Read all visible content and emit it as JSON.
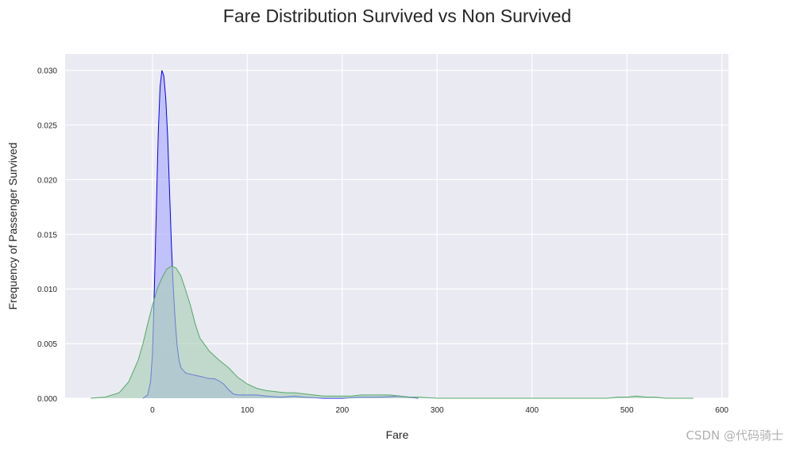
{
  "chart_data": {
    "type": "area",
    "title": "Fare Distribution Survived vs Non Survived",
    "xlabel": "Fare",
    "ylabel": "Frequency of Passenger Survived",
    "xlim": [
      -92,
      607
    ],
    "ylim": [
      0,
      0.0315
    ],
    "grid": true,
    "x_ticks": [
      0,
      100,
      200,
      300,
      400,
      500,
      600
    ],
    "y_ticks": [
      0.0,
      0.005,
      0.01,
      0.015,
      0.02,
      0.025,
      0.03
    ],
    "x_tick_labels": [
      "0",
      "100",
      "200",
      "300",
      "400",
      "500",
      "600"
    ],
    "y_tick_labels": [
      "0.000",
      "0.005",
      "0.010",
      "0.015",
      "0.020",
      "0.025",
      "0.030"
    ],
    "series": [
      {
        "color": "#0000ff",
        "fill": "#aaaaff",
        "points": [
          [
            -10,
            0
          ],
          [
            -5,
            0.0003
          ],
          [
            -2,
            0.0015
          ],
          [
            0,
            0.004
          ],
          [
            2,
            0.01
          ],
          [
            4,
            0.017
          ],
          [
            6,
            0.024
          ],
          [
            8,
            0.0285
          ],
          [
            10,
            0.03
          ],
          [
            12,
            0.0295
          ],
          [
            14,
            0.0275
          ],
          [
            16,
            0.024
          ],
          [
            18,
            0.019
          ],
          [
            20,
            0.014
          ],
          [
            22,
            0.01
          ],
          [
            24,
            0.007
          ],
          [
            26,
            0.0048
          ],
          [
            28,
            0.0035
          ],
          [
            30,
            0.0028
          ],
          [
            35,
            0.0023
          ],
          [
            40,
            0.0022
          ],
          [
            45,
            0.0021
          ],
          [
            50,
            0.002
          ],
          [
            55,
            0.0019
          ],
          [
            60,
            0.0018
          ],
          [
            65,
            0.0018
          ],
          [
            70,
            0.0016
          ],
          [
            75,
            0.0013
          ],
          [
            80,
            0.0008
          ],
          [
            85,
            0.0004
          ],
          [
            90,
            0.0003
          ],
          [
            100,
            0.0003
          ],
          [
            110,
            0.0003
          ],
          [
            120,
            0.0002
          ],
          [
            135,
            0.0001
          ],
          [
            150,
            0.0002
          ],
          [
            160,
            0.0001
          ],
          [
            180,
            0.0
          ],
          [
            200,
            0.0
          ],
          [
            220,
            0.0001
          ],
          [
            240,
            0.0001
          ],
          [
            260,
            0.0002
          ],
          [
            270,
            0.0001
          ],
          [
            280,
            0.0
          ]
        ]
      },
      {
        "color": "#55a868",
        "fill": "#a8cdb4",
        "points": [
          [
            -65,
            0
          ],
          [
            -50,
            0.0001
          ],
          [
            -35,
            0.0005
          ],
          [
            -25,
            0.0015
          ],
          [
            -15,
            0.0035
          ],
          [
            -10,
            0.005
          ],
          [
            -5,
            0.0068
          ],
          [
            0,
            0.0085
          ],
          [
            5,
            0.01
          ],
          [
            10,
            0.011
          ],
          [
            15,
            0.0118
          ],
          [
            20,
            0.0121
          ],
          [
            25,
            0.0119
          ],
          [
            30,
            0.0112
          ],
          [
            35,
            0.0099
          ],
          [
            40,
            0.0085
          ],
          [
            45,
            0.0068
          ],
          [
            50,
            0.0055
          ],
          [
            60,
            0.0043
          ],
          [
            70,
            0.0035
          ],
          [
            80,
            0.0028
          ],
          [
            90,
            0.0019
          ],
          [
            100,
            0.0013
          ],
          [
            110,
            0.0009
          ],
          [
            120,
            0.0007
          ],
          [
            130,
            0.0006
          ],
          [
            140,
            0.0005
          ],
          [
            150,
            0.0005
          ],
          [
            160,
            0.0004
          ],
          [
            170,
            0.0003
          ],
          [
            180,
            0.0002
          ],
          [
            190,
            0.0002
          ],
          [
            200,
            0.0002
          ],
          [
            210,
            0.0002
          ],
          [
            220,
            0.0003
          ],
          [
            230,
            0.0003
          ],
          [
            240,
            0.0003
          ],
          [
            250,
            0.0003
          ],
          [
            260,
            0.0002
          ],
          [
            270,
            0.0001
          ],
          [
            280,
            0.0001
          ],
          [
            300,
            0.0
          ],
          [
            330,
            0.0
          ],
          [
            400,
            0.0
          ],
          [
            460,
            0.0
          ],
          [
            480,
            0.0
          ],
          [
            490,
            0.0001
          ],
          [
            500,
            0.0001
          ],
          [
            510,
            0.0002
          ],
          [
            520,
            0.0001
          ],
          [
            530,
            0.0001
          ],
          [
            540,
            0.0
          ],
          [
            570,
            0.0
          ]
        ]
      }
    ]
  },
  "watermark": "CSDN @代码骑士"
}
